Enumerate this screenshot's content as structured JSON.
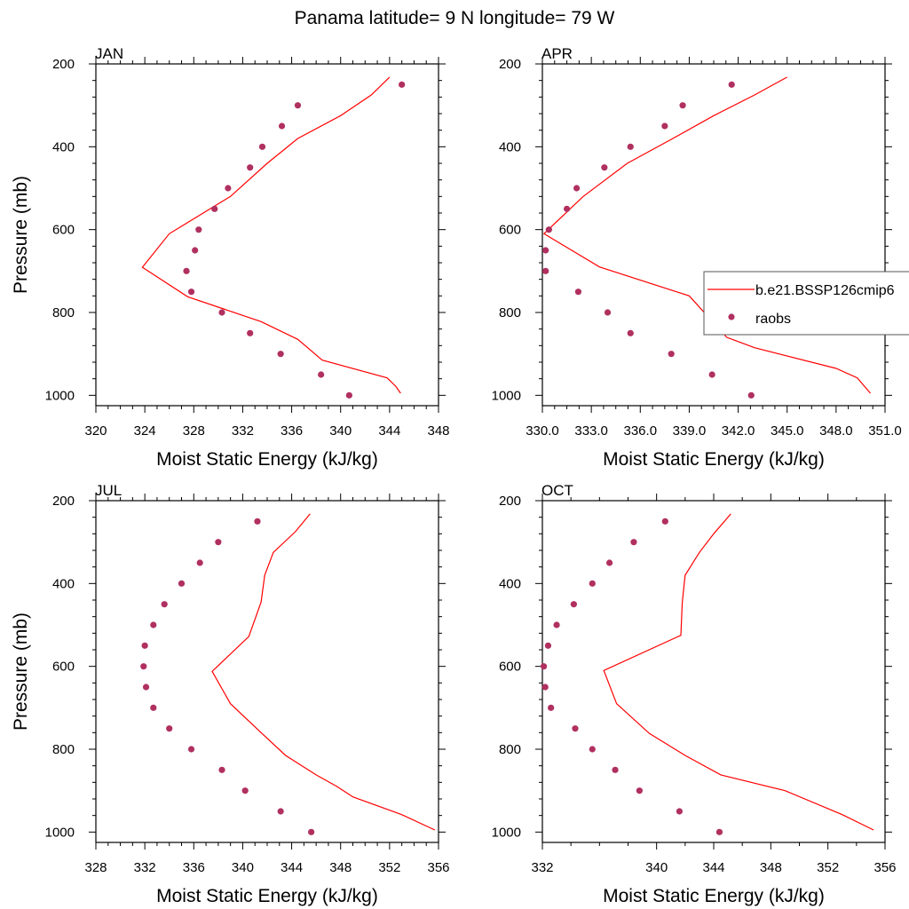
{
  "figure": {
    "title": "Panama  latitude= 9 N longitude= 79 W"
  },
  "legend": {
    "entries": [
      {
        "label": "b.e21.BSSP126cmip6",
        "style": "line",
        "color": "#ff0000"
      },
      {
        "label": "raobs",
        "style": "marker",
        "color": "#b03060"
      }
    ],
    "placement": "right of APR panel"
  },
  "chart_data": [
    {
      "type": "line",
      "panel": "JAN",
      "title": "JAN",
      "xlabel": "Moist Static Energy (kJ/kg)",
      "ylabel": "Pressure (mb)",
      "xlim": [
        320,
        348
      ],
      "ylim": [
        1025,
        200
      ],
      "yscale": "linear, inverted",
      "xticks": [
        320,
        324,
        328,
        332,
        336,
        340,
        344,
        348
      ],
      "xtick_labels": [
        "320",
        "324",
        "328",
        "332",
        "336",
        "340",
        "344",
        "348"
      ],
      "yticks": [
        200,
        400,
        600,
        800,
        1000
      ],
      "ytick_labels": [
        "200",
        "400",
        "600",
        "800",
        "1000"
      ],
      "series": [
        {
          "name": "b.e21.BSSP126cmip6",
          "kind": "line",
          "color": "#ff0000",
          "points": [
            [
              344.0,
              232
            ],
            [
              342.5,
              275
            ],
            [
              340.0,
              325
            ],
            [
              336.5,
              380
            ],
            [
              334.0,
              440
            ],
            [
              331.0,
              520
            ],
            [
              326.0,
              610
            ],
            [
              323.8,
              691
            ],
            [
              327.5,
              762
            ],
            [
              333.5,
              822
            ],
            [
              336.5,
              865
            ],
            [
              338.5,
              915
            ],
            [
              343.8,
              958
            ],
            [
              344.5,
              978
            ],
            [
              344.9,
              995
            ]
          ]
        },
        {
          "name": "raobs",
          "kind": "scatter",
          "color": "#b03060",
          "points": [
            [
              345.0,
              250
            ],
            [
              336.5,
              300
            ],
            [
              335.2,
              350
            ],
            [
              333.6,
              400
            ],
            [
              332.6,
              450
            ],
            [
              330.8,
              500
            ],
            [
              329.7,
              550
            ],
            [
              328.4,
              600
            ],
            [
              328.1,
              650
            ],
            [
              327.4,
              700
            ],
            [
              327.8,
              750
            ],
            [
              330.3,
              800
            ],
            [
              332.6,
              850
            ],
            [
              335.1,
              900
            ],
            [
              338.4,
              950
            ],
            [
              340.7,
              1000
            ]
          ]
        }
      ]
    },
    {
      "type": "line",
      "panel": "APR",
      "title": "APR",
      "xlabel": "Moist Static Energy (kJ/kg)",
      "ylabel": "",
      "xlim": [
        330,
        351
      ],
      "ylim": [
        1025,
        200
      ],
      "yscale": "linear, inverted",
      "xticks": [
        330,
        333,
        336,
        339,
        342,
        345,
        348,
        351
      ],
      "xtick_labels": [
        "330.0",
        "333.0",
        "336.0",
        "339.0",
        "342.0",
        "345.0",
        "348.0",
        "351.0"
      ],
      "yticks": [
        200,
        400,
        600,
        800,
        1000
      ],
      "ytick_labels": [
        "200",
        "400",
        "600",
        "800",
        "1000"
      ],
      "series": [
        {
          "name": "b.e21.BSSP126cmip6",
          "kind": "line",
          "color": "#ff0000",
          "points": [
            [
              345.0,
              232
            ],
            [
              343.0,
              275
            ],
            [
              340.5,
              325
            ],
            [
              338.0,
              380
            ],
            [
              335.2,
              440
            ],
            [
              332.5,
              520
            ],
            [
              330.1,
              610
            ],
            [
              333.5,
              690
            ],
            [
              339.0,
              760
            ],
            [
              341.3,
              860
            ],
            [
              343.0,
              885
            ],
            [
              348.0,
              935
            ],
            [
              349.3,
              958
            ],
            [
              350.1,
              995
            ]
          ]
        },
        {
          "name": "raobs",
          "kind": "scatter",
          "color": "#b03060",
          "points": [
            [
              341.6,
              250
            ],
            [
              338.6,
              300
            ],
            [
              337.5,
              350
            ],
            [
              335.4,
              400
            ],
            [
              333.8,
              450
            ],
            [
              332.1,
              500
            ],
            [
              331.5,
              550
            ],
            [
              330.4,
              600
            ],
            [
              330.2,
              650
            ],
            [
              330.2,
              700
            ],
            [
              332.2,
              750
            ],
            [
              334.0,
              800
            ],
            [
              335.4,
              850
            ],
            [
              337.9,
              900
            ],
            [
              340.4,
              950
            ],
            [
              342.8,
              1000
            ]
          ]
        }
      ]
    },
    {
      "type": "line",
      "panel": "JUL",
      "title": "JUL",
      "xlabel": "Moist Static Energy (kJ/kg)",
      "ylabel": "Pressure (mb)",
      "xlim": [
        328,
        356
      ],
      "ylim": [
        1025,
        200
      ],
      "yscale": "linear, inverted",
      "xticks": [
        328,
        332,
        336,
        340,
        344,
        348,
        352,
        356
      ],
      "xtick_labels": [
        "328",
        "332",
        "336",
        "340",
        "344",
        "348",
        "352",
        "356"
      ],
      "yticks": [
        200,
        400,
        600,
        800,
        1000
      ],
      "ytick_labels": [
        "200",
        "400",
        "600",
        "800",
        "1000"
      ],
      "series": [
        {
          "name": "b.e21.BSSP126cmip6",
          "kind": "line",
          "color": "#ff0000",
          "points": [
            [
              345.5,
              232
            ],
            [
              344.3,
              275
            ],
            [
              342.5,
              325
            ],
            [
              341.8,
              380
            ],
            [
              341.5,
              445
            ],
            [
              340.5,
              528
            ],
            [
              337.5,
              612
            ],
            [
              339.0,
              690
            ],
            [
              341.5,
              760
            ],
            [
              343.5,
              815
            ],
            [
              346.0,
              862
            ],
            [
              347.7,
              890
            ],
            [
              349.0,
              915
            ],
            [
              353.0,
              958
            ],
            [
              355.7,
              995
            ]
          ]
        },
        {
          "name": "raobs",
          "kind": "scatter",
          "color": "#b03060",
          "points": [
            [
              341.2,
              250
            ],
            [
              338.0,
              300
            ],
            [
              336.5,
              350
            ],
            [
              335.0,
              400
            ],
            [
              333.6,
              450
            ],
            [
              332.7,
              500
            ],
            [
              332.0,
              550
            ],
            [
              331.9,
              600
            ],
            [
              332.1,
              650
            ],
            [
              332.7,
              700
            ],
            [
              334.0,
              750
            ],
            [
              335.8,
              800
            ],
            [
              338.3,
              850
            ],
            [
              340.2,
              900
            ],
            [
              343.1,
              950
            ],
            [
              345.6,
              1000
            ]
          ]
        }
      ]
    },
    {
      "type": "line",
      "panel": "OCT",
      "title": "OCT",
      "xlabel": "Moist Static Energy (kJ/kg)",
      "ylabel": "",
      "xlim": [
        332,
        356
      ],
      "ylim": [
        1025,
        200
      ],
      "yscale": "linear, inverted",
      "xticks": [
        332,
        340,
        344,
        348,
        352,
        356
      ],
      "xtick_labels": [
        "332",
        "340",
        "344",
        "348",
        "352",
        "356"
      ],
      "yticks": [
        200,
        400,
        600,
        800,
        1000
      ],
      "ytick_labels": [
        "200",
        "400",
        "600",
        "800",
        "1000"
      ],
      "series": [
        {
          "name": "b.e21.BSSP126cmip6",
          "kind": "line",
          "color": "#ff0000",
          "points": [
            [
              345.2,
              232
            ],
            [
              344.0,
              280
            ],
            [
              343.0,
              325
            ],
            [
              342.0,
              380
            ],
            [
              341.8,
              445
            ],
            [
              341.7,
              525
            ],
            [
              336.3,
              610
            ],
            [
              337.2,
              690
            ],
            [
              339.5,
              762
            ],
            [
              342.0,
              815
            ],
            [
              344.5,
              862
            ],
            [
              349.0,
              900
            ],
            [
              353.0,
              958
            ],
            [
              355.2,
              995
            ]
          ]
        },
        {
          "name": "raobs",
          "kind": "scatter",
          "color": "#b03060",
          "points": [
            [
              340.6,
              250
            ],
            [
              338.4,
              300
            ],
            [
              336.7,
              350
            ],
            [
              335.5,
              400
            ],
            [
              334.2,
              450
            ],
            [
              333.0,
              500
            ],
            [
              332.4,
              550
            ],
            [
              332.1,
              600
            ],
            [
              332.2,
              650
            ],
            [
              332.6,
              700
            ],
            [
              334.3,
              750
            ],
            [
              335.5,
              800
            ],
            [
              337.1,
              850
            ],
            [
              338.8,
              900
            ],
            [
              341.6,
              950
            ],
            [
              344.4,
              1000
            ]
          ]
        }
      ]
    }
  ]
}
